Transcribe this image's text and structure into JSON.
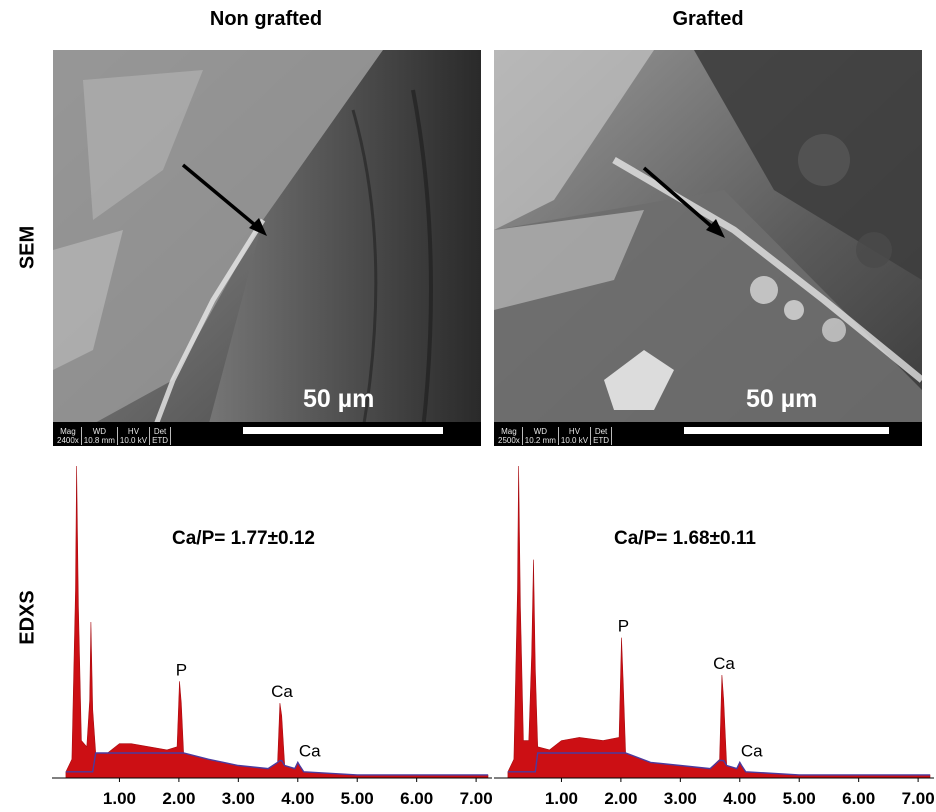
{
  "columns": {
    "left_title": "Non grafted",
    "right_title": "Grafted"
  },
  "rows": {
    "top_label": "SEM",
    "bottom_label": "EDXS"
  },
  "sem_left": {
    "scale_label": "50 µm",
    "info": [
      {
        "h": "Mag",
        "v": "2400x"
      },
      {
        "h": "WD",
        "v": "10.8 mm"
      },
      {
        "h": "HV",
        "v": "10.0 kV"
      },
      {
        "h": "Det",
        "v": "ETD"
      }
    ]
  },
  "sem_right": {
    "scale_label": "50 µm",
    "info": [
      {
        "h": "Mag",
        "v": "2500x"
      },
      {
        "h": "WD",
        "v": "10.2 mm"
      },
      {
        "h": "HV",
        "v": "10.0 kV"
      },
      {
        "h": "Det",
        "v": "ETD"
      }
    ]
  },
  "chart_data": [
    {
      "type": "area",
      "ratio_label": "Ca/P= 1.77±0.12",
      "x_ticks": [
        "1.00",
        "2.00",
        "3.00",
        "4.00",
        "5.00",
        "6.00",
        "7.00"
      ],
      "xlim": [
        0.0,
        7.2
      ],
      "ylim": [
        0,
        100
      ],
      "series": [
        {
          "values": [
            [
              0.1,
              2
            ],
            [
              0.2,
              6
            ],
            [
              0.26,
              60
            ],
            [
              0.28,
              100
            ],
            [
              0.31,
              55
            ],
            [
              0.36,
              12
            ],
            [
              0.45,
              10
            ],
            [
              0.5,
              25
            ],
            [
              0.52,
              50
            ],
            [
              0.55,
              22
            ],
            [
              0.6,
              8
            ],
            [
              0.8,
              8
            ],
            [
              1.0,
              11
            ],
            [
              1.2,
              11
            ],
            [
              1.5,
              10
            ],
            [
              1.8,
              9
            ],
            [
              1.97,
              10
            ],
            [
              2.01,
              31
            ],
            [
              2.04,
              24
            ],
            [
              2.08,
              8
            ],
            [
              2.5,
              6
            ],
            [
              3.0,
              4
            ],
            [
              3.5,
              3
            ],
            [
              3.66,
              5
            ],
            [
              3.7,
              24
            ],
            [
              3.73,
              20
            ],
            [
              3.78,
              4
            ],
            [
              3.95,
              3
            ],
            [
              4.0,
              5
            ],
            [
              4.03,
              4
            ],
            [
              4.1,
              2
            ],
            [
              5.0,
              1
            ],
            [
              6.0,
              1
            ],
            [
              7.2,
              1
            ]
          ]
        }
      ],
      "peak_labels": [
        {
          "text": "P",
          "x": 2.01,
          "y": 31
        },
        {
          "text": "Ca",
          "x": 3.7,
          "y": 24
        },
        {
          "text": "Ca",
          "x": 4.0,
          "y": 5
        }
      ]
    },
    {
      "type": "area",
      "ratio_label": "Ca/P= 1.68±0.11",
      "x_ticks": [
        "1.00",
        "2.00",
        "3.00",
        "4.00",
        "5.00",
        "6.00",
        "7.00"
      ],
      "xlim": [
        0.0,
        7.2
      ],
      "ylim": [
        0,
        100
      ],
      "series": [
        {
          "values": [
            [
              0.1,
              2
            ],
            [
              0.2,
              6
            ],
            [
              0.26,
              60
            ],
            [
              0.28,
              100
            ],
            [
              0.31,
              55
            ],
            [
              0.36,
              12
            ],
            [
              0.45,
              12
            ],
            [
              0.5,
              40
            ],
            [
              0.53,
              70
            ],
            [
              0.56,
              35
            ],
            [
              0.6,
              10
            ],
            [
              0.8,
              9
            ],
            [
              1.0,
              12
            ],
            [
              1.3,
              13
            ],
            [
              1.7,
              12
            ],
            [
              1.97,
              13
            ],
            [
              2.01,
              45
            ],
            [
              2.04,
              30
            ],
            [
              2.08,
              8
            ],
            [
              2.5,
              5
            ],
            [
              3.0,
              4
            ],
            [
              3.5,
              3
            ],
            [
              3.66,
              6
            ],
            [
              3.7,
              33
            ],
            [
              3.73,
              25
            ],
            [
              3.78,
              4
            ],
            [
              3.95,
              3
            ],
            [
              4.0,
              5
            ],
            [
              4.03,
              4
            ],
            [
              4.1,
              2
            ],
            [
              5.0,
              1
            ],
            [
              6.0,
              1
            ],
            [
              7.2,
              1
            ]
          ]
        }
      ],
      "peak_labels": [
        {
          "text": "P",
          "x": 2.01,
          "y": 45
        },
        {
          "text": "Ca",
          "x": 3.7,
          "y": 33
        },
        {
          "text": "Ca",
          "x": 4.0,
          "y": 5
        }
      ]
    }
  ]
}
